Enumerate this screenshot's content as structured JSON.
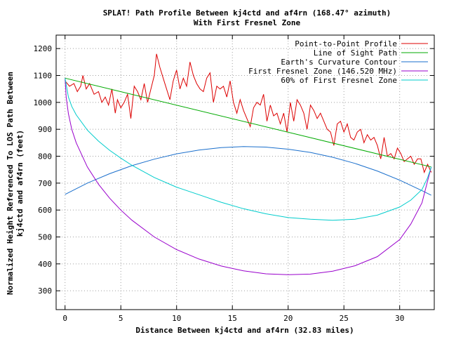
{
  "chart_data": {
    "type": "line",
    "title": "SPLAT! Path Profile Between kj4ctd and af4rn (168.47° azimuth)",
    "subtitle": "With First Fresnel Zone",
    "xlabel": "Distance Between kj4ctd and af4rn (32.83 miles)",
    "ylabel_lines": [
      "Normalized Height Referenced To LOS Path Between",
      "kj4ctd and af4rn (feet)"
    ],
    "xlim": [
      -0.8,
      33.1
    ],
    "ylim": [
      230,
      1250
    ],
    "xticks": [
      0,
      5,
      10,
      15,
      20,
      25,
      30
    ],
    "yticks": [
      300,
      400,
      500,
      600,
      700,
      800,
      900,
      1000,
      1100,
      1200
    ],
    "grid": true,
    "legend_position": "top-right",
    "series": [
      {
        "name": "Point-to-Point Profile",
        "color": "#dd0000",
        "x": [
          0,
          0.4,
          0.8,
          1.1,
          1.4,
          1.6,
          1.9,
          2.2,
          2.6,
          3.0,
          3.3,
          3.6,
          3.9,
          4.2,
          4.5,
          4.7,
          5.0,
          5.3,
          5.6,
          5.9,
          6.2,
          6.5,
          6.8,
          7.1,
          7.4,
          7.7,
          8.0,
          8.2,
          8.5,
          8.8,
          9.1,
          9.4,
          9.7,
          10.0,
          10.3,
          10.6,
          10.9,
          11.2,
          11.5,
          11.8,
          12.1,
          12.4,
          12.7,
          13.0,
          13.3,
          13.6,
          13.9,
          14.2,
          14.5,
          14.8,
          15.1,
          15.4,
          15.7,
          16.0,
          16.3,
          16.6,
          16.9,
          17.2,
          17.5,
          17.8,
          18.1,
          18.4,
          18.7,
          19.0,
          19.3,
          19.6,
          19.9,
          20.2,
          20.5,
          20.8,
          21.1,
          21.4,
          21.7,
          22.0,
          22.3,
          22.6,
          22.9,
          23.2,
          23.5,
          23.8,
          24.1,
          24.4,
          24.7,
          25.0,
          25.3,
          25.6,
          25.9,
          26.2,
          26.5,
          26.8,
          27.1,
          27.4,
          27.7,
          28.0,
          28.3,
          28.6,
          28.9,
          29.2,
          29.5,
          29.8,
          30.1,
          30.4,
          30.7,
          31.0,
          31.3,
          31.6,
          31.9,
          32.2,
          32.5,
          32.83
        ],
        "values": [
          1080,
          1060,
          1070,
          1040,
          1060,
          1100,
          1050,
          1070,
          1030,
          1040,
          1000,
          1020,
          990,
          1050,
          960,
          1010,
          980,
          1000,
          1030,
          940,
          1060,
          1040,
          1010,
          1070,
          1000,
          1050,
          1100,
          1180,
          1130,
          1090,
          1050,
          1010,
          1080,
          1120,
          1050,
          1090,
          1060,
          1150,
          1100,
          1070,
          1050,
          1040,
          1090,
          1110,
          1000,
          1060,
          1050,
          1060,
          1020,
          1080,
          1000,
          960,
          1010,
          970,
          940,
          910,
          980,
          1000,
          990,
          1030,
          930,
          990,
          950,
          960,
          920,
          960,
          890,
          1000,
          930,
          1010,
          990,
          960,
          900,
          990,
          970,
          940,
          960,
          930,
          900,
          890,
          840,
          920,
          930,
          890,
          920,
          870,
          860,
          890,
          900,
          850,
          880,
          860,
          870,
          840,
          790,
          870,
          800,
          810,
          790,
          830,
          810,
          780,
          790,
          800,
          770,
          790,
          790,
          740,
          770,
          740
        ]
      },
      {
        "name": "Line of Sight Path",
        "color": "#00aa00",
        "x": [
          0,
          32.83
        ],
        "values": [
          1090,
          760
        ]
      },
      {
        "name": "Earth's Curvature Contour",
        "color": "#1a6fcc",
        "x": [
          0,
          2,
          4,
          6,
          8,
          10,
          12,
          14,
          16,
          18,
          20,
          22,
          24,
          26,
          28,
          30,
          32,
          32.83
        ],
        "values": [
          658,
          700,
          735,
          765,
          789,
          809,
          823,
          832,
          836,
          834,
          826,
          814,
          796,
          773,
          745,
          711,
          672,
          655
        ]
      },
      {
        "name": "First Fresnel Zone (146.520 MHz)",
        "color": "#9900cc",
        "x": [
          0,
          0.1,
          0.3,
          0.6,
          1,
          2,
          3,
          4,
          5,
          6,
          8,
          10,
          12,
          14,
          16,
          18,
          20,
          22,
          24,
          26,
          28,
          30,
          31,
          32,
          32.5,
          32.83
        ],
        "values": [
          1090,
          1020,
          958,
          900,
          850,
          760,
          696,
          644,
          600,
          562,
          500,
          453,
          418,
          392,
          374,
          363,
          360,
          362,
          373,
          393,
          427,
          490,
          548,
          627,
          708,
          760
        ]
      },
      {
        "name": "60% of First Fresnel Zone",
        "color": "#00cccc",
        "x": [
          0,
          0.3,
          0.6,
          1,
          2,
          3,
          4,
          5,
          6,
          8,
          10,
          12,
          14,
          16,
          18,
          20,
          22,
          24,
          26,
          28,
          30,
          31,
          32,
          32.5,
          32.83
        ],
        "values": [
          1090,
          1020,
          985,
          954,
          897,
          856,
          822,
          793,
          766,
          721,
          685,
          657,
          629,
          605,
          586,
          572,
          566,
          562,
          566,
          581,
          611,
          637,
          676,
          720,
          760
        ]
      }
    ]
  }
}
